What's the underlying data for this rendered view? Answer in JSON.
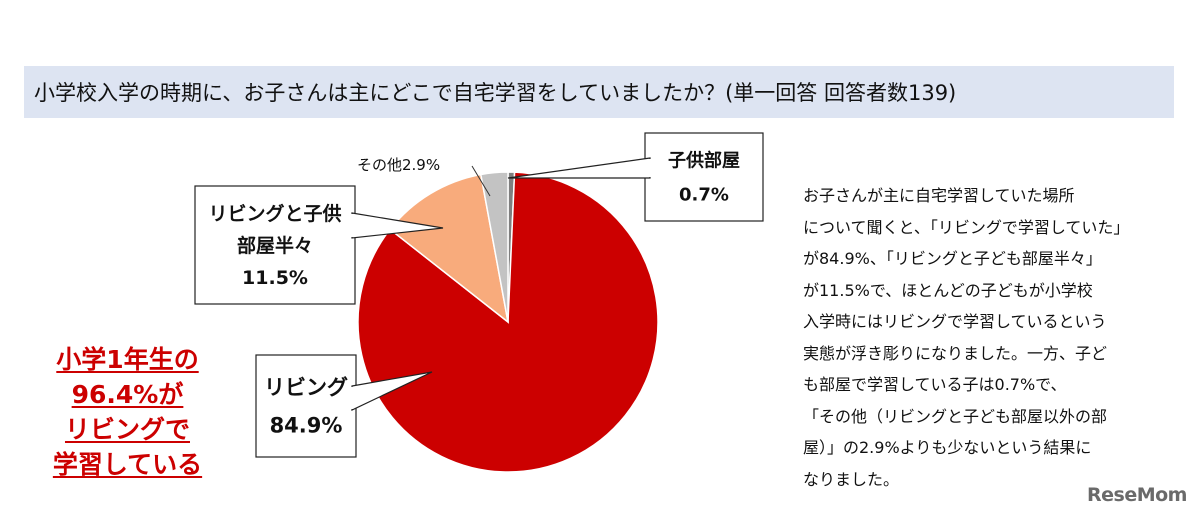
{
  "header": {
    "title": "小学校入学の時期に、お子さんは主にどこで自宅学習をしていましたか？(単一回答 回答者数139)"
  },
  "note": {
    "text": "お子さんが主に自宅学習していた場所\nについて聞くと、「リビングで学習していた」\nが84.9%、「リビングと子ども部屋半々」\nが11.5%で、ほとんどの子どもが小学校\n入学時にはリビングで学習しているという\n実態が浮き彫りになりました。一方、子ど\nも部屋で学習している子は0.7%で、\n「その他（リビングと子ども部屋以外の部\n屋）」の2.9%よりも少ないという結果に\nなりました。"
  },
  "highlight": {
    "lines": [
      "小学1年生の",
      "96.4%が",
      "リビングで",
      "学習している"
    ]
  },
  "watermark": {
    "text": "ReseMom"
  },
  "chart_data": {
    "type": "pie",
    "title": "小学校入学の時期に、お子さんは主にどこで自宅学習をしていましたか？(単一回答 回答者数139)",
    "slices": [
      {
        "label_lines": [
          "子供部屋"
        ],
        "value": 0.7,
        "value_text": "0.7%",
        "color": "#7f7f7f",
        "callout": "box"
      },
      {
        "label_lines": [
          "リビング"
        ],
        "value": 84.9,
        "value_text": "84.9%",
        "color": "#cc0000",
        "callout": "box"
      },
      {
        "label_lines": [
          "リビングと子供",
          "部屋半々"
        ],
        "value": 11.5,
        "value_text": "11.5%",
        "color": "#f8ab7c",
        "callout": "box"
      },
      {
        "label_lines": [
          "その他"
        ],
        "value": 2.9,
        "value_text": "2.9%",
        "color": "#c3c3c3",
        "callout": "plain"
      }
    ],
    "start_angle_deg": 0,
    "direction": "clockwise"
  }
}
